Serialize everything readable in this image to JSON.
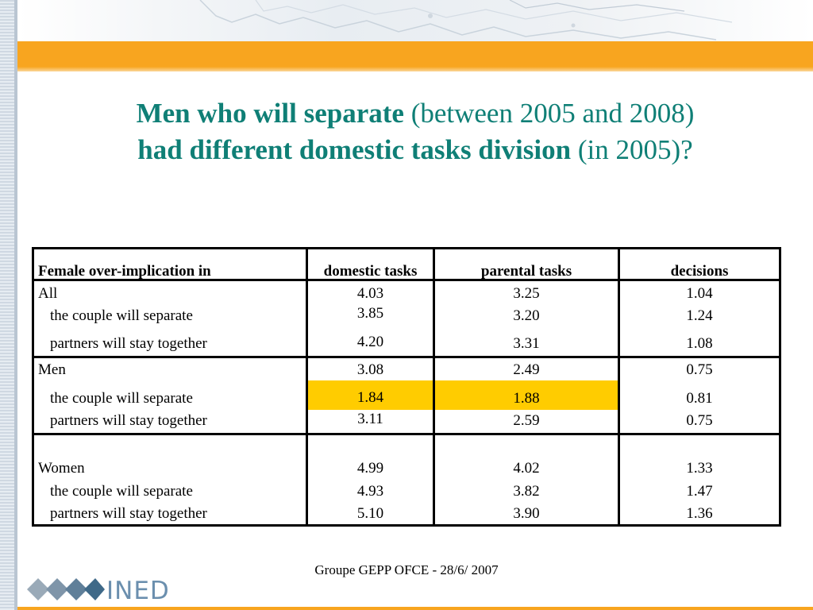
{
  "title": {
    "line1_bold": "Men who will separate",
    "line1_normal": " (between 2005 and 2008)",
    "line2_bold": "had different domestic tasks division",
    "line2_normal": " (in 2005)?"
  },
  "table": {
    "headers": [
      "Female over-implication in",
      "domestic tasks",
      "parental tasks",
      "decisions"
    ],
    "groups": [
      {
        "label": "All",
        "values": [
          "4.03",
          "3.25",
          "1.04"
        ],
        "rows": [
          {
            "label": "the couple will separate",
            "values": [
              "3.85",
              "3.20",
              "1.24"
            ]
          },
          {
            "label": "partners will stay together",
            "values": [
              "4.20",
              "3.31",
              "1.08"
            ]
          }
        ]
      },
      {
        "label": "Men",
        "values": [
          "3.08",
          "2.49",
          "0.75"
        ],
        "rows": [
          {
            "label": "the couple will separate",
            "values": [
              "1.84",
              "1.88",
              "0.81"
            ]
          },
          {
            "label": "partners will stay together",
            "values": [
              "3.11",
              "2.59",
              "0.75"
            ]
          }
        ]
      },
      {
        "label": "Women",
        "values": [
          "4.99",
          "4.02",
          "1.33"
        ],
        "rows": [
          {
            "label": "the couple will separate",
            "values": [
              "4.93",
              "3.82",
              "1.47"
            ]
          },
          {
            "label": "partners will stay together",
            "values": [
              "5.10",
              "3.90",
              "1.36"
            ]
          }
        ]
      }
    ],
    "highlight_color": "#ffcc00"
  },
  "footer": "Groupe GEPP OFCE - 28/6/ 2007",
  "logo": {
    "text": "INED",
    "icon": "ined-diamonds-logo"
  },
  "colors": {
    "accent": "#f8a51f",
    "title": "#0f7f76"
  }
}
